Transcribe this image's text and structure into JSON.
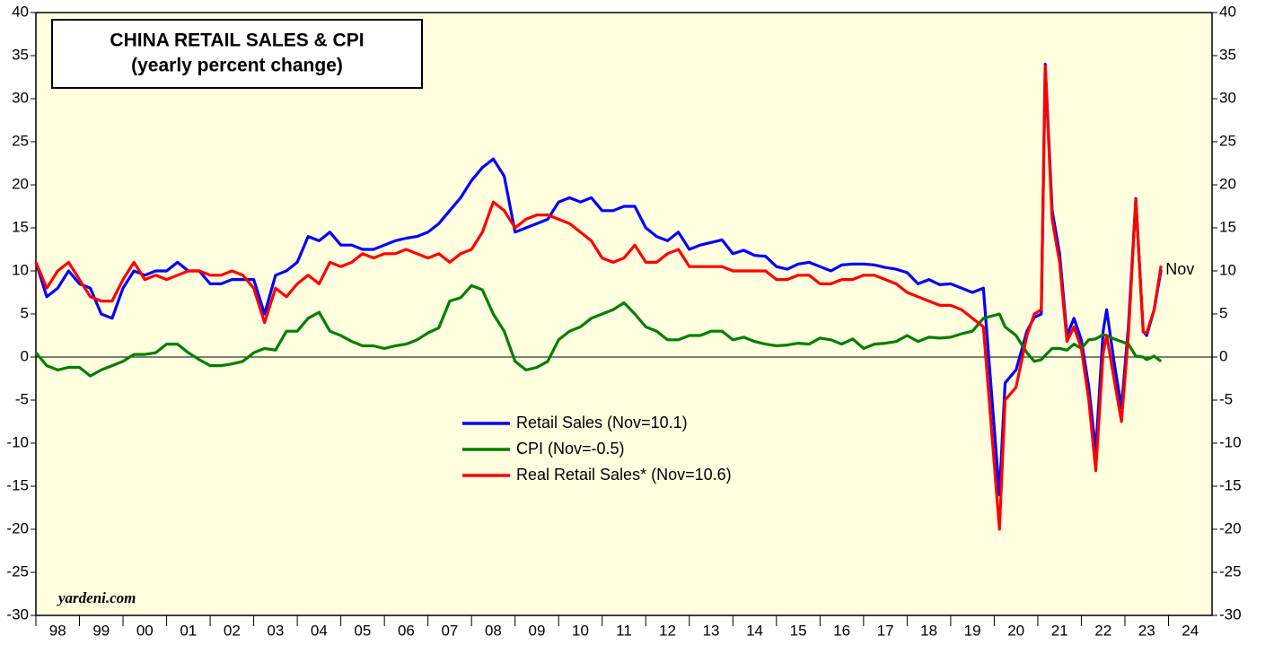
{
  "chart_data": {
    "type": "line",
    "title": "CHINA RETAIL SALES & CPI",
    "subtitle": "(yearly percent change)",
    "annotation": "Nov",
    "source": "yardeni.com",
    "xlim": [
      1998,
      2025
    ],
    "xticks": [
      {
        "value": 1998.5,
        "label": "98"
      },
      {
        "value": 1999.5,
        "label": "99"
      },
      {
        "value": 2000.5,
        "label": "00"
      },
      {
        "value": 2001.5,
        "label": "01"
      },
      {
        "value": 2002.5,
        "label": "02"
      },
      {
        "value": 2003.5,
        "label": "03"
      },
      {
        "value": 2004.5,
        "label": "04"
      },
      {
        "value": 2005.5,
        "label": "05"
      },
      {
        "value": 2006.5,
        "label": "06"
      },
      {
        "value": 2007.5,
        "label": "07"
      },
      {
        "value": 2008.5,
        "label": "08"
      },
      {
        "value": 2009.5,
        "label": "09"
      },
      {
        "value": 2010.5,
        "label": "10"
      },
      {
        "value": 2011.5,
        "label": "11"
      },
      {
        "value": 2012.5,
        "label": "12"
      },
      {
        "value": 2013.5,
        "label": "13"
      },
      {
        "value": 2014.5,
        "label": "14"
      },
      {
        "value": 2015.5,
        "label": "15"
      },
      {
        "value": 2016.5,
        "label": "16"
      },
      {
        "value": 2017.5,
        "label": "17"
      },
      {
        "value": 2018.5,
        "label": "18"
      },
      {
        "value": 2019.5,
        "label": "19"
      },
      {
        "value": 2020.5,
        "label": "20"
      },
      {
        "value": 2021.5,
        "label": "21"
      },
      {
        "value": 2022.5,
        "label": "22"
      },
      {
        "value": 2023.5,
        "label": "23"
      },
      {
        "value": 2024.5,
        "label": "24"
      }
    ],
    "ylim": [
      -30,
      40
    ],
    "yticks": [
      -30,
      -25,
      -20,
      -15,
      -10,
      -5,
      0,
      5,
      10,
      15,
      20,
      25,
      30,
      35,
      40
    ],
    "x": [
      1998,
      1998.25,
      1998.5,
      1998.75,
      1999,
      1999.25,
      1999.5,
      1999.75,
      2000,
      2000.25,
      2000.5,
      2000.75,
      2001,
      2001.25,
      2001.5,
      2001.75,
      2002,
      2002.25,
      2002.5,
      2002.75,
      2003,
      2003.25,
      2003.5,
      2003.75,
      2004,
      2004.25,
      2004.5,
      2004.75,
      2005,
      2005.25,
      2005.5,
      2005.75,
      2006,
      2006.25,
      2006.5,
      2006.75,
      2007,
      2007.25,
      2007.5,
      2007.75,
      2008,
      2008.25,
      2008.5,
      2008.75,
      2009,
      2009.25,
      2009.5,
      2009.75,
      2010,
      2010.25,
      2010.5,
      2010.75,
      2011,
      2011.25,
      2011.5,
      2011.75,
      2012,
      2012.25,
      2012.5,
      2012.75,
      2013,
      2013.25,
      2013.5,
      2013.75,
      2014,
      2014.25,
      2014.5,
      2014.75,
      2015,
      2015.25,
      2015.5,
      2015.75,
      2016,
      2016.25,
      2016.5,
      2016.75,
      2017,
      2017.25,
      2017.5,
      2017.75,
      2018,
      2018.25,
      2018.5,
      2018.75,
      2019,
      2019.25,
      2019.5,
      2019.75,
      2020.12,
      2020.25,
      2020.5,
      2020.75,
      2020.92,
      2021.08,
      2021.17,
      2021.33,
      2021.5,
      2021.67,
      2021.83,
      2022,
      2022.17,
      2022.33,
      2022.5,
      2022.58,
      2022.75,
      2022.92,
      2023.08,
      2023.25,
      2023.42,
      2023.5,
      2023.67,
      2023.83
    ],
    "series": [
      {
        "name": "Retail Sales (Nov=10.1)",
        "color": "#0000ff",
        "values": [
          11,
          7,
          8,
          10,
          8.5,
          8,
          5,
          4.5,
          8,
          10,
          9.5,
          10,
          10,
          11,
          10,
          10,
          8.5,
          8.5,
          9,
          9,
          9,
          5,
          9.5,
          10,
          11,
          14,
          13.5,
          14.5,
          13,
          13,
          12.5,
          12.5,
          13,
          13.5,
          13.8,
          14,
          14.5,
          15.5,
          17,
          18.5,
          20.5,
          22,
          23,
          21,
          14.5,
          15,
          15.5,
          16,
          18,
          18.5,
          18,
          18.5,
          17,
          17,
          17.5,
          17.5,
          15,
          14,
          13.5,
          14.5,
          12.5,
          13,
          13.3,
          13.6,
          12,
          12.4,
          11.8,
          11.7,
          10.5,
          10.2,
          10.8,
          11,
          10.5,
          10,
          10.7,
          10.8,
          10.8,
          10.7,
          10.4,
          10.2,
          9.8,
          8.5,
          9,
          8.4,
          8.5,
          8,
          7.5,
          8,
          -16,
          -3,
          -1.5,
          3,
          4.6,
          5,
          34,
          17,
          12,
          2.5,
          4.5,
          2,
          -3.5,
          -11,
          3,
          5.5,
          -0.5,
          -5.9,
          3.5,
          18.4,
          3,
          2.5,
          5.5,
          10.1
        ]
      },
      {
        "name": "CPI (Nov=-0.5)",
        "color": "#008000",
        "values": [
          0.5,
          -1,
          -1.5,
          -1.2,
          -1.2,
          -2.2,
          -1.5,
          -1,
          -0.5,
          0.3,
          0.3,
          0.5,
          1.5,
          1.5,
          0.5,
          -0.3,
          -1,
          -1,
          -0.8,
          -0.5,
          0.5,
          1,
          0.8,
          3,
          3,
          4.5,
          5.2,
          3,
          2.5,
          1.8,
          1.3,
          1.3,
          1,
          1.3,
          1.5,
          2,
          2.8,
          3.4,
          6.5,
          6.9,
          8.3,
          7.8,
          5,
          3,
          -0.5,
          -1.5,
          -1.2,
          -0.5,
          2,
          3,
          3.5,
          4.5,
          5,
          5.5,
          6.3,
          5,
          3.5,
          3,
          2,
          2,
          2.5,
          2.5,
          3,
          3,
          2,
          2.3,
          1.8,
          1.5,
          1.3,
          1.4,
          1.6,
          1.5,
          2.2,
          2,
          1.5,
          2.1,
          1,
          1.5,
          1.6,
          1.8,
          2.5,
          1.8,
          2.3,
          2.2,
          2.3,
          2.7,
          3,
          4.5,
          5,
          3.5,
          2.5,
          0.5,
          -0.5,
          -0.3,
          0.2,
          1,
          1,
          0.8,
          1.5,
          1,
          2,
          2.1,
          2.6,
          2.5,
          2.1,
          1.8,
          1.5,
          0.1,
          0,
          -0.3,
          0.1,
          -0.5
        ]
      },
      {
        "name": "Real Retail Sales* (Nov=10.6)",
        "color": "#ff0000",
        "values": [
          11,
          8,
          10,
          11,
          9,
          7,
          6.5,
          6.5,
          9,
          11,
          9,
          9.5,
          9,
          9.5,
          10,
          10,
          9.5,
          9.5,
          10,
          9.5,
          8,
          4,
          8,
          7,
          8.5,
          9.5,
          8.5,
          11,
          10.5,
          11,
          12,
          11.5,
          12,
          12,
          12.5,
          12,
          11.5,
          12,
          11,
          12,
          12.5,
          14.5,
          18,
          17,
          15,
          16,
          16.5,
          16.5,
          16,
          15.5,
          14.5,
          13.5,
          11.5,
          11,
          11.5,
          13,
          11,
          11,
          12,
          12.5,
          10.5,
          10.5,
          10.5,
          10.5,
          10,
          10,
          10,
          10,
          9,
          9,
          9.5,
          9.5,
          8.5,
          8.5,
          9,
          9,
          9.5,
          9.5,
          9,
          8.5,
          7.5,
          7,
          6.5,
          6,
          6,
          5.5,
          4.5,
          3.5,
          -20,
          -5,
          -3.5,
          2.5,
          5,
          5.5,
          33.8,
          16,
          11,
          1.8,
          3.5,
          1,
          -5,
          -13.2,
          0.5,
          2.5,
          -2.5,
          -7.5,
          2.5,
          18.3,
          2.9,
          2.8,
          5.5,
          10.6
        ]
      }
    ]
  }
}
